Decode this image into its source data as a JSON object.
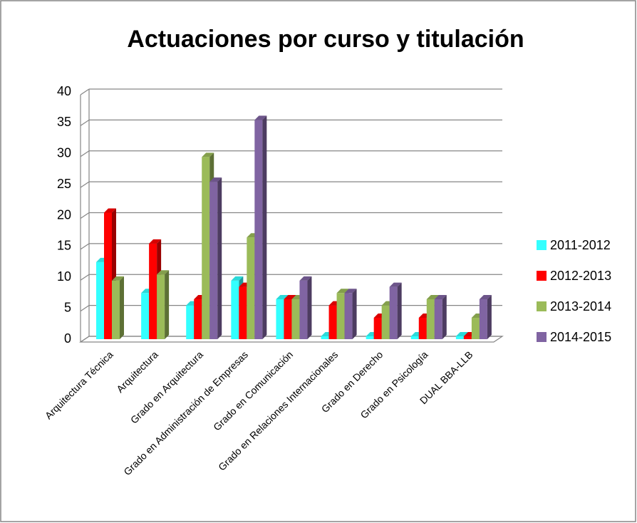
{
  "chart_data": {
    "type": "bar",
    "title": "Actuaciones por curso y titulación",
    "categories": [
      "Arquitectura Técnica",
      "Arquitectura",
      "Grado en Arquitectura",
      "Grado en Administración de Empresas",
      "Grado en Comunicación",
      "Grado en Relaciones Internacionales",
      "Grado en Derecho",
      "Grado en Psicología",
      "DUAL BBA-LLB"
    ],
    "series": [
      {
        "name": "2011-2012",
        "color": "#33ffff",
        "values": [
          12,
          7,
          5,
          9,
          6,
          0,
          0,
          0,
          0
        ]
      },
      {
        "name": "2012-2013",
        "color": "#ff0000",
        "values": [
          20,
          15,
          6,
          8,
          6,
          5,
          3,
          3,
          0
        ]
      },
      {
        "name": "2013-2014",
        "color": "#9bbb59",
        "values": [
          9,
          10,
          29,
          16,
          6,
          7,
          5,
          6,
          3
        ]
      },
      {
        "name": "2014-2015",
        "color": "#8064a2",
        "values": [
          null,
          null,
          25,
          35,
          9,
          7,
          8,
          6,
          6
        ]
      }
    ],
    "ylim": [
      0,
      40
    ],
    "yticks": [
      0,
      5,
      10,
      15,
      20,
      25,
      30,
      35,
      40
    ],
    "grid": true,
    "legend": "right"
  }
}
